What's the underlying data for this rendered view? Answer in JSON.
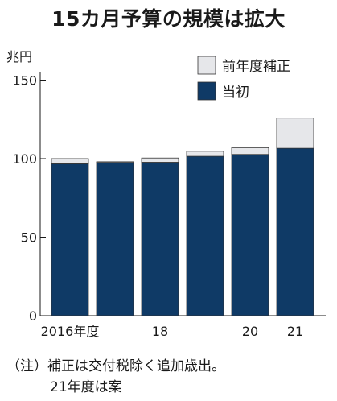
{
  "chart_data": {
    "type": "bar",
    "stacked": true,
    "title": "15カ月予算の規模は拡大",
    "y_unit_label": "兆円",
    "ylim": [
      0,
      160
    ],
    "yticks": [
      0,
      50,
      100,
      150
    ],
    "grid": false,
    "legend_position": "top-right",
    "categories": [
      "2016年度",
      "",
      "18",
      "",
      "20",
      "21"
    ],
    "series": [
      {
        "name": "当初",
        "color": "#0f3a66",
        "values": [
          96.7,
          97.5,
          97.7,
          101.5,
          102.7,
          106.6
        ]
      },
      {
        "name": "前年度補正",
        "color": "#e6e7ea",
        "values": [
          3.3,
          0.5,
          2.7,
          3.2,
          4.3,
          19.2
        ]
      }
    ]
  },
  "notes": {
    "line1": "（注）補正は交付税除く追加歳出。",
    "line2": "21年度は案"
  }
}
